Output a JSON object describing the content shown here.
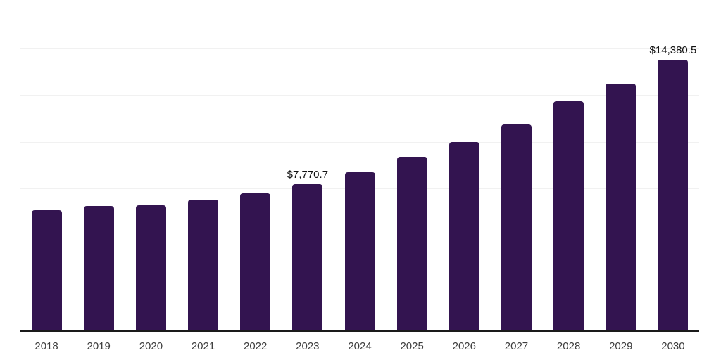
{
  "chart_data": {
    "type": "bar",
    "categories": [
      "2018",
      "2019",
      "2020",
      "2021",
      "2022",
      "2023",
      "2024",
      "2025",
      "2026",
      "2027",
      "2028",
      "2029",
      "2030"
    ],
    "values": [
      6390,
      6605,
      6665,
      6950,
      7280,
      7770.7,
      8430,
      9230,
      10010,
      10970,
      12185,
      13115,
      14380.5
    ],
    "annotations": [
      {
        "category": "2023",
        "text": "$7,770.7"
      },
      {
        "category": "2030",
        "text": "$14,380.5"
      }
    ],
    "xlabel": "",
    "ylabel": "",
    "ylim": [
      0,
      17500
    ],
    "gridline_step": 2500,
    "grid": true,
    "legend": "none",
    "bar_color": "#331450",
    "gridline_color": "#f1f1f1",
    "axis_line_color": "#1a1a1a",
    "tick_label_color": "#3d3d3d",
    "value_label_color": "#111111",
    "background_color": "#ffffff"
  }
}
